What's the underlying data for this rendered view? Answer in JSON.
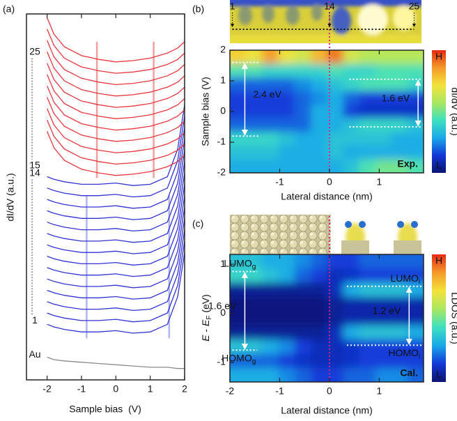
{
  "chart_data": [
    {
      "type": "line",
      "label": "(a)",
      "xlabel": "Sample bias  (V)",
      "ylabel": "dI/dV (a.u.)",
      "x": [
        -2,
        -1.8,
        -1.5,
        -1,
        -0.5,
        0,
        0.5,
        1,
        1.5,
        1.8,
        2
      ],
      "xlim": [
        -2.6,
        2
      ],
      "ylim": [
        0,
        29
      ],
      "xticks": [
        -2,
        -1,
        0,
        1,
        2
      ],
      "series": [
        {
          "name": "1",
          "color": "#3232d4",
          "values": [
            4.4,
            4.2,
            4.0,
            3.8,
            3.8,
            3.9,
            3.7,
            3.8,
            4.4,
            6.6,
            10.1
          ]
        },
        {
          "color": "#3232d4",
          "values": [
            5.3,
            5.1,
            4.9,
            4.7,
            4.7,
            4.8,
            4.6,
            4.7,
            5.3,
            7.5,
            11.0
          ]
        },
        {
          "color": "#3232d4",
          "values": [
            6.2,
            6.0,
            5.8,
            5.6,
            5.6,
            5.7,
            5.5,
            5.6,
            6.2,
            8.4,
            11.9
          ]
        },
        {
          "color": "#3232d4",
          "values": [
            7.1,
            6.9,
            6.7,
            6.5,
            6.5,
            6.6,
            6.4,
            6.5,
            7.1,
            9.3,
            12.8
          ]
        },
        {
          "color": "#3232d4",
          "values": [
            8.0,
            7.8,
            7.6,
            7.4,
            7.4,
            7.5,
            7.3,
            7.4,
            8.0,
            10.2,
            13.7
          ]
        },
        {
          "color": "#3232d4",
          "values": [
            8.9,
            8.7,
            8.5,
            8.3,
            8.3,
            8.4,
            8.2,
            8.3,
            8.9,
            11.1,
            14.6
          ]
        },
        {
          "color": "#3232d4",
          "values": [
            9.8,
            9.6,
            9.4,
            9.2,
            9.2,
            9.3,
            9.1,
            9.2,
            9.8,
            12.0,
            15.5
          ]
        },
        {
          "color": "#3232d4",
          "values": [
            10.7,
            10.5,
            10.3,
            10.1,
            10.1,
            10.2,
            10.0,
            10.1,
            10.7,
            12.9,
            16.4
          ]
        },
        {
          "color": "#3232d4",
          "values": [
            11.6,
            11.4,
            11.2,
            11.0,
            11.0,
            11.1,
            10.9,
            11.0,
            11.6,
            13.8,
            17.3
          ]
        },
        {
          "color": "#3232d4",
          "values": [
            12.5,
            12.3,
            12.1,
            11.9,
            11.9,
            12.0,
            11.8,
            11.9,
            12.5,
            14.7,
            18.2
          ]
        },
        {
          "color": "#3232d4",
          "values": [
            13.4,
            13.2,
            13.0,
            12.8,
            12.8,
            12.9,
            12.7,
            12.8,
            13.4,
            15.6,
            19.1
          ]
        },
        {
          "color": "#3232d4",
          "values": [
            14.3,
            14.1,
            13.9,
            13.7,
            13.7,
            13.8,
            13.6,
            13.7,
            14.3,
            16.5,
            20.0
          ]
        },
        {
          "color": "#3232d4",
          "values": [
            15.2,
            15.0,
            14.8,
            14.6,
            14.6,
            14.7,
            14.5,
            14.6,
            15.2,
            17.4,
            20.9
          ]
        },
        {
          "name": "14",
          "color": "#3232d4",
          "values": [
            16.1,
            15.9,
            15.7,
            15.5,
            15.5,
            15.6,
            15.4,
            15.5,
            16.1,
            18.3,
            21.8
          ]
        },
        {
          "name": "15",
          "color": "#e8363c",
          "values": [
            19.7,
            18.4,
            17.4,
            16.7,
            16.4,
            16.2,
            16.3,
            16.5,
            16.9,
            17.3,
            17.8
          ]
        },
        {
          "color": "#e8363c",
          "values": [
            20.6,
            19.3,
            18.3,
            17.6,
            17.3,
            17.1,
            17.2,
            17.4,
            17.8,
            18.2,
            18.7
          ]
        },
        {
          "color": "#e8363c",
          "values": [
            21.5,
            20.2,
            19.2,
            18.5,
            18.2,
            18.0,
            18.1,
            18.3,
            18.7,
            19.1,
            19.6
          ]
        },
        {
          "color": "#e8363c",
          "values": [
            22.4,
            21.1,
            20.1,
            19.4,
            19.1,
            18.9,
            19.0,
            19.2,
            19.6,
            20.0,
            20.5
          ]
        },
        {
          "color": "#e8363c",
          "values": [
            23.3,
            22.0,
            21.0,
            20.3,
            20.0,
            19.8,
            19.9,
            20.1,
            20.5,
            20.9,
            21.4
          ]
        },
        {
          "color": "#e8363c",
          "values": [
            24.2,
            22.9,
            21.9,
            21.2,
            20.9,
            20.7,
            20.8,
            21.0,
            21.4,
            21.8,
            22.3
          ]
        },
        {
          "color": "#e8363c",
          "values": [
            25.1,
            23.8,
            22.8,
            22.1,
            21.8,
            21.6,
            21.7,
            21.9,
            22.3,
            22.7,
            23.2
          ]
        },
        {
          "color": "#e8363c",
          "values": [
            26.0,
            24.7,
            23.7,
            23.0,
            22.7,
            22.5,
            22.6,
            22.8,
            23.2,
            23.6,
            24.1
          ]
        },
        {
          "color": "#e8363c",
          "values": [
            26.9,
            25.6,
            24.6,
            23.9,
            23.6,
            23.4,
            23.5,
            23.7,
            24.1,
            24.5,
            25.0
          ]
        },
        {
          "color": "#e8363c",
          "values": [
            27.8,
            26.5,
            25.5,
            24.8,
            24.5,
            24.3,
            24.4,
            24.6,
            25.0,
            25.4,
            25.9
          ]
        },
        {
          "name": "25",
          "color": "#e8363c",
          "values": [
            28.7,
            27.4,
            26.4,
            25.7,
            25.4,
            25.2,
            25.3,
            25.5,
            25.9,
            26.3,
            26.8
          ]
        },
        {
          "name": "Au",
          "color": "#8a8a8a",
          "values": [
            1.8,
            1.6,
            1.5,
            1.4,
            1.3,
            1.2,
            1.1,
            1.0,
            1.0,
            0.9,
            0.9
          ]
        }
      ],
      "vlines": [
        {
          "x": -0.55,
          "y": [
            16,
            26.8
          ],
          "color": "#f08a8a"
        },
        {
          "x": 1.1,
          "y": [
            16,
            26.8
          ],
          "color": "#f08a8a"
        },
        {
          "x": -0.85,
          "y": [
            3.3,
            14.6
          ],
          "color": "#9aa6ee"
        },
        {
          "x": 1.55,
          "y": [
            3.3,
            14.6
          ],
          "color": "#9aa6ee"
        }
      ]
    },
    {
      "type": "heatmap",
      "label": "(b)",
      "xlabel": "Lateral distance (nm)",
      "ylabel": "Sample bias (V)",
      "colorbar_label": "dI/dV (a.u.)",
      "tag": "Exp.",
      "tag_color": "#e0208a",
      "marker_x": 0,
      "marker_color": "#e0208a",
      "xlim": [
        -2,
        1.89
      ],
      "ylim": [
        -2,
        2
      ],
      "xticks": [
        -1,
        0,
        1
      ],
      "yticks": [
        -2,
        -1,
        0,
        1,
        2
      ],
      "zlim": [
        0,
        1
      ],
      "zticks": [
        {
          "value": 0,
          "label": "L"
        },
        {
          "value": 1,
          "label": "H"
        }
      ],
      "colormap": [
        "#0b1470",
        "#1238d8",
        "#1aa8e8",
        "#3ee0c0",
        "#a8e860",
        "#f4e23a",
        "#f49a2a",
        "#e62a14"
      ],
      "x": [
        -1.84,
        -1.51,
        -1.19,
        -0.86,
        -0.54,
        -0.21,
        0.11,
        0.44,
        0.76,
        1.09,
        1.41,
        1.73
      ],
      "y": [
        1.78,
        1.33,
        0.89,
        0.44,
        0,
        -0.44,
        -0.89,
        -1.33,
        -1.78
      ],
      "z": [
        [
          0.75,
          0.7,
          0.85,
          0.7,
          0.65,
          0.8,
          0.9,
          0.65,
          0.6,
          0.6,
          0.6,
          0.6
        ],
        [
          0.45,
          0.45,
          0.4,
          0.4,
          0.4,
          0.4,
          0.45,
          0.4,
          0.4,
          0.45,
          0.45,
          0.45
        ],
        [
          0.2,
          0.2,
          0.2,
          0.2,
          0.25,
          0.3,
          0.35,
          0.4,
          0.45,
          0.45,
          0.45,
          0.4
        ],
        [
          0.15,
          0.15,
          0.15,
          0.15,
          0.2,
          0.25,
          0.3,
          0.2,
          0.15,
          0.15,
          0.15,
          0.15
        ],
        [
          0.15,
          0.15,
          0.15,
          0.15,
          0.2,
          0.3,
          0.3,
          0.15,
          0.12,
          0.12,
          0.12,
          0.12
        ],
        [
          0.2,
          0.2,
          0.2,
          0.2,
          0.2,
          0.3,
          0.3,
          0.35,
          0.4,
          0.4,
          0.4,
          0.35
        ],
        [
          0.4,
          0.4,
          0.4,
          0.35,
          0.3,
          0.3,
          0.35,
          0.35,
          0.35,
          0.35,
          0.3,
          0.3
        ],
        [
          0.35,
          0.35,
          0.35,
          0.3,
          0.3,
          0.3,
          0.35,
          0.3,
          0.3,
          0.3,
          0.3,
          0.3
        ],
        [
          0.3,
          0.3,
          0.3,
          0.3,
          0.3,
          0.3,
          0.3,
          0.35,
          0.45,
          0.5,
          0.5,
          0.45
        ]
      ],
      "gaps": [
        {
          "label": "2.4 eV",
          "top": 1.6,
          "bottom": -0.8,
          "x": [
            -1.95,
            -1.4
          ],
          "arrow_x": -1.7
        },
        {
          "label": "1.6 eV",
          "top": 1.05,
          "bottom": -0.5,
          "x": [
            0.4,
            1.85
          ],
          "arrow_x": 1.78
        }
      ],
      "image_labels": [
        {
          "text": "1",
          "x": -1.95
        },
        {
          "text": "14",
          "x": 0
        },
        {
          "text": "25",
          "x": 1.7
        }
      ]
    },
    {
      "type": "heatmap",
      "label": "(c)",
      "xlabel": "Lateral distance (nm)",
      "ylabel": [
        "E",
        " - ",
        "E",
        "F",
        " (eV)"
      ],
      "colorbar_label": "LDOS (a.u.)",
      "tag": "Cal.",
      "tag_color": "#e0208a",
      "marker_x": 0,
      "marker_color": "#e0208a",
      "xlim": [
        -2,
        1.89
      ],
      "ylim": [
        -1.4,
        1.2
      ],
      "xticks": [
        -2,
        -1,
        0,
        1
      ],
      "yticks": [
        -1,
        0,
        1
      ],
      "zlim": [
        0,
        1
      ],
      "zticks": [
        {
          "value": 0,
          "label": "L"
        },
        {
          "value": 1,
          "label": "H"
        }
      ],
      "colormap": [
        "#0b1470",
        "#1238d8",
        "#1aa8e8",
        "#3ee0c0",
        "#a8e860",
        "#f4e23a",
        "#f49a2a",
        "#e62a14"
      ],
      "x": [
        -1.84,
        -1.51,
        -1.19,
        -0.86,
        -0.54,
        -0.21,
        0.11,
        0.44,
        0.76,
        1.09,
        1.41,
        1.73
      ],
      "y": [
        1.06,
        0.77,
        0.48,
        0.19,
        -0.1,
        -0.39,
        -0.68,
        -0.97,
        -1.26
      ],
      "z": [
        [
          0.35,
          0.35,
          0.3,
          0.3,
          0.25,
          0.2,
          0.15,
          0.15,
          0.2,
          0.2,
          0.2,
          0.2
        ],
        [
          0.4,
          0.4,
          0.35,
          0.3,
          0.2,
          0.15,
          0.1,
          0.12,
          0.15,
          0.15,
          0.15,
          0.15
        ],
        [
          0.05,
          0.05,
          0.05,
          0.05,
          0.05,
          0.05,
          0.1,
          0.3,
          0.35,
          0.35,
          0.35,
          0.3
        ],
        [
          0.02,
          0.02,
          0.02,
          0.02,
          0.02,
          0.02,
          0.05,
          0.08,
          0.08,
          0.08,
          0.08,
          0.08
        ],
        [
          0.02,
          0.02,
          0.02,
          0.02,
          0.02,
          0.02,
          0.05,
          0.08,
          0.08,
          0.08,
          0.08,
          0.08
        ],
        [
          0.05,
          0.05,
          0.05,
          0.05,
          0.05,
          0.05,
          0.1,
          0.3,
          0.35,
          0.35,
          0.35,
          0.3
        ],
        [
          0.35,
          0.35,
          0.3,
          0.25,
          0.15,
          0.1,
          0.1,
          0.12,
          0.15,
          0.15,
          0.15,
          0.15
        ],
        [
          0.2,
          0.2,
          0.2,
          0.15,
          0.12,
          0.1,
          0.1,
          0.12,
          0.15,
          0.15,
          0.15,
          0.15
        ],
        [
          0.3,
          0.3,
          0.3,
          0.25,
          0.2,
          0.15,
          0.15,
          0.2,
          0.2,
          0.25,
          0.25,
          0.2
        ]
      ],
      "gaps": [
        {
          "label": "1.6 eV",
          "top": 0.85,
          "bottom": -0.75,
          "x": [
            -1.95,
            -1.45
          ],
          "arrow_x": -1.7,
          "top_label": {
            "text": "LUMO",
            "sub": "g"
          },
          "bottom_label": {
            "text": "HOMO",
            "sub": "g"
          }
        },
        {
          "label": "1.2 eV",
          "top": 0.55,
          "bottom": -0.65,
          "x": [
            0.35,
            1.85
          ],
          "arrow_x": 1.6,
          "top_label": {
            "text": "LUMO",
            "sub": "i"
          },
          "bottom_label": {
            "text": "HOMO",
            "sub": "i"
          }
        }
      ]
    }
  ]
}
